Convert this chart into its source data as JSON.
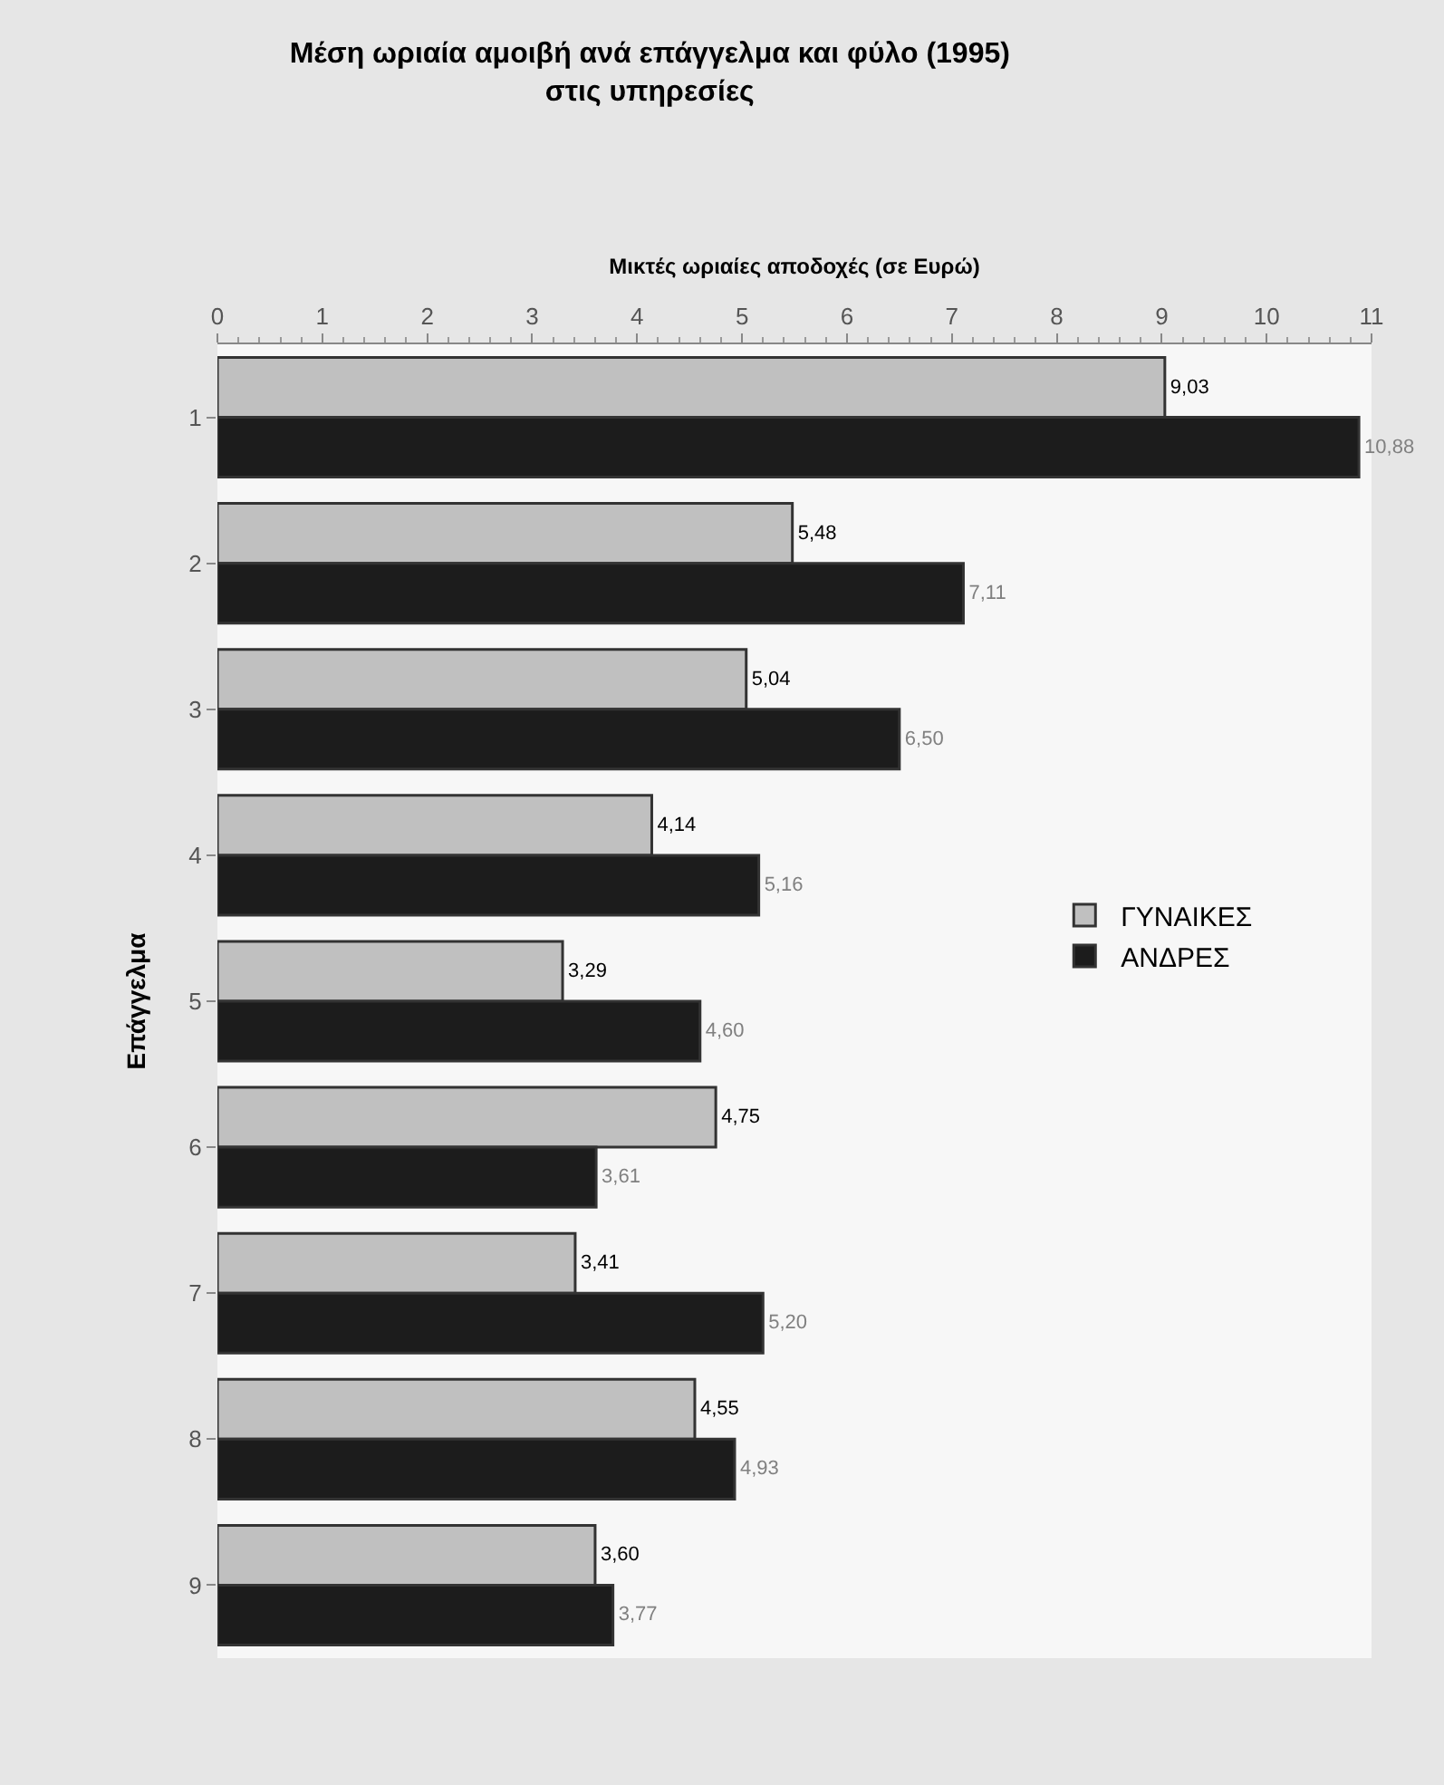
{
  "chart_data": {
    "type": "bar",
    "orientation": "horizontal",
    "title": "Μέση ωριαία αμοιβή ανά επάγγελμα και φύλο (1995)\nστις υπηρεσίες",
    "xlabel": "Μικτές ωριαίες αποδοχές (σε Ευρώ)",
    "ylabel": "Επάγγελμα",
    "categories": [
      "1",
      "2",
      "3",
      "4",
      "5",
      "6",
      "7",
      "8",
      "9"
    ],
    "series": [
      {
        "name": "ΓΥΝΑΙΚΕΣ",
        "color": "#c0c0c0",
        "values": [
          9.03,
          5.48,
          5.04,
          4.14,
          3.29,
          4.75,
          3.41,
          4.55,
          3.6
        ],
        "value_labels": [
          "9,03",
          "5,48",
          "5,04",
          "4,14",
          "3,29",
          "4,75",
          "3,41",
          "4,55",
          "3,60"
        ]
      },
      {
        "name": "ΑΝΔΡΕΣ",
        "color": "#1c1c1c",
        "values": [
          10.88,
          7.11,
          6.5,
          5.16,
          4.6,
          3.61,
          5.2,
          4.93,
          3.77
        ],
        "value_labels": [
          "10,88",
          "7,11",
          "6,50",
          "5,16",
          "4,60",
          "3,61",
          "5,20",
          "4,93",
          "3,77"
        ]
      }
    ],
    "xlim": [
      0,
      11
    ],
    "xticks": [
      0,
      1,
      2,
      3,
      4,
      5,
      6,
      7,
      8,
      9,
      10,
      11
    ],
    "grid": false,
    "legend": "right"
  }
}
